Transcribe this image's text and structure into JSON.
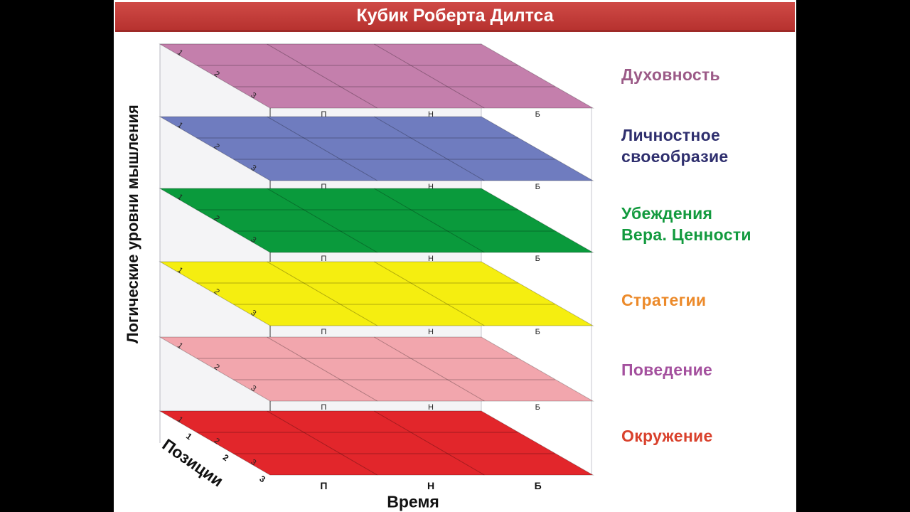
{
  "title": "Кубик Роберта Дилтса",
  "axes": {
    "vertical": "Логические уровни мышления",
    "positions": "Позиции",
    "time": "Время"
  },
  "time_labels": [
    "П",
    "Н",
    "Б"
  ],
  "position_labels": [
    "1",
    "2",
    "3"
  ],
  "layers": [
    {
      "id": "spirituality",
      "lines": [
        "Духовность"
      ],
      "fill": "#c47fac",
      "text_color": "#9b5a87"
    },
    {
      "id": "identity",
      "lines": [
        "Личностное",
        "своеобразие"
      ],
      "fill": "#6f7cbf",
      "text_color": "#2f2f6e"
    },
    {
      "id": "beliefs",
      "lines": [
        "Убеждения",
        "Вера. Ценности"
      ],
      "fill": "#0a9a3c",
      "text_color": "#129a3e"
    },
    {
      "id": "strategies",
      "lines": [
        "Стратегии"
      ],
      "fill": "#f5ee10",
      "text_color": "#ec8a2a"
    },
    {
      "id": "behavior",
      "lines": [
        "Поведение"
      ],
      "fill": "#f2a6ad",
      "text_color": "#a4509e"
    },
    {
      "id": "environment",
      "lines": [
        "Окружение"
      ],
      "fill": "#e2262b",
      "text_color": "#d9412c"
    }
  ]
}
